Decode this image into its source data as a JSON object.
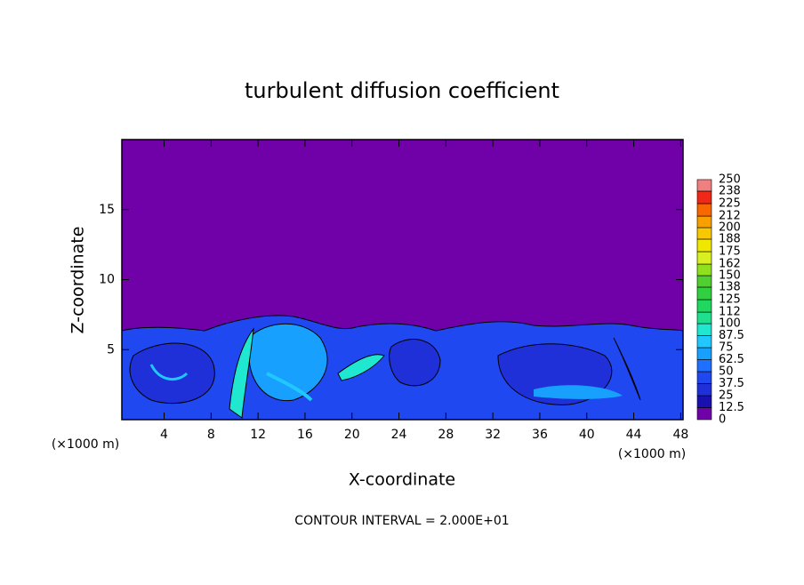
{
  "chart_data": {
    "type": "contour",
    "title": "turbulent diffusion coefficient",
    "xlabel": "X-coordinate",
    "ylabel": "Z-coordinate",
    "x_unit": "(×1000 m)",
    "y_unit": "(×1000 m)",
    "annotation": "CONTOUR INTERVAL = 2.000E+01",
    "xlim": [
      0.4,
      48.2
    ],
    "xticks": [
      4,
      8,
      12,
      16,
      20,
      24,
      28,
      32,
      36,
      40,
      44,
      48
    ],
    "ylim": [
      0,
      20
    ],
    "yticks": [
      5,
      10,
      15
    ],
    "colorbar": {
      "levels": [
        0,
        12.5,
        25,
        37.5,
        50,
        62.5,
        75,
        87.5,
        100,
        112,
        125,
        138,
        150,
        162,
        175,
        188,
        200,
        212,
        225,
        238,
        250
      ],
      "colors": [
        "#7000a8",
        "#1a10b0",
        "#2030d8",
        "#2048f0",
        "#2070ff",
        "#18a0ff",
        "#20c8ff",
        "#20e8d0",
        "#20e090",
        "#20d860",
        "#30d040",
        "#50d030",
        "#90e020",
        "#d8f020",
        "#f0e800",
        "#f8c800",
        "#f8a000",
        "#f86800",
        "#f02818",
        "#f08080"
      ]
    }
  }
}
